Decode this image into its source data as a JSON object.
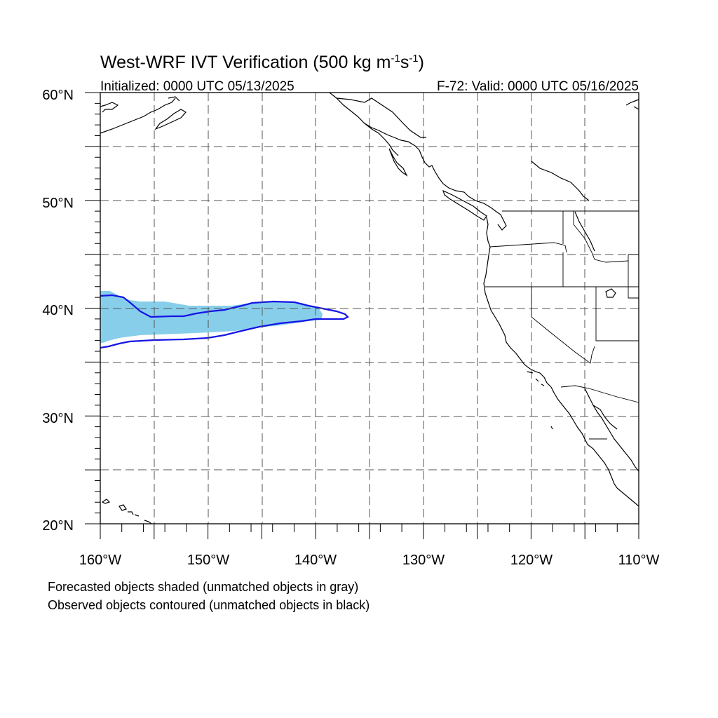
{
  "title": "West-WRF IVT Verification (500 kg m",
  "title_sup1": "-1",
  "title_mid": "s",
  "title_sup2": "-1",
  "title_end": ")",
  "init_label": "Initialized: 0000 UTC 05/13/2025",
  "valid_label": "F-72: Valid: 0000 UTC 05/16/2025",
  "lat_labels": [
    "60°N",
    "50°N",
    "40°N",
    "30°N",
    "20°N"
  ],
  "lon_labels": [
    "160°W",
    "150°W",
    "140°W",
    "130°W",
    "120°W",
    "110°W"
  ],
  "note_1": "Forecasted objects shaded (unmatched objects in gray)",
  "note_2": "Observed objects contoured (unmatched objects in black)",
  "colors": {
    "forecast_fill": "#87ceeb",
    "observed_contour": "#1414e6",
    "grid": "#555555"
  }
}
